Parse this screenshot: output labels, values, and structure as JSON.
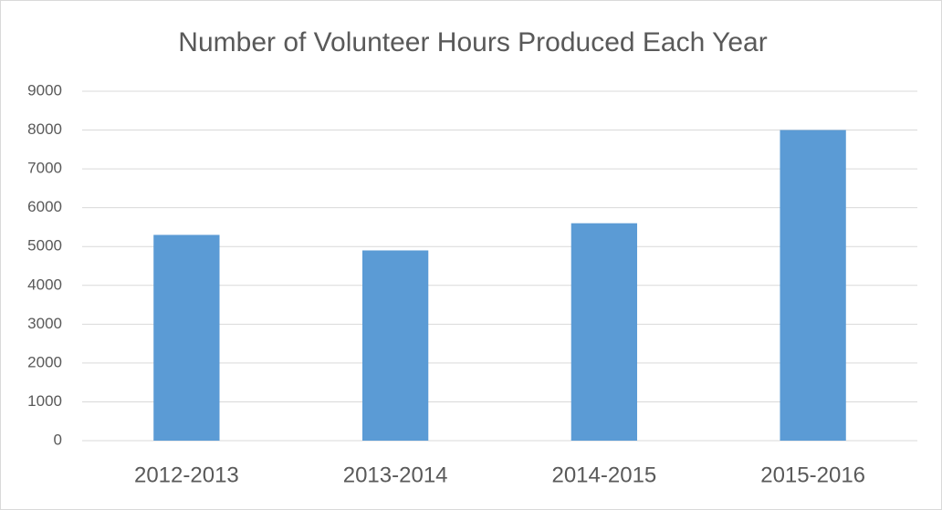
{
  "chart_data": {
    "type": "bar",
    "title": "Number of Volunteer Hours Produced Each Year",
    "categories": [
      "2012-2013",
      "2013-2014",
      "2014-2015",
      "2015-2016"
    ],
    "values": [
      5300,
      4900,
      5600,
      8000
    ],
    "color": "#5b9bd5",
    "ylim": [
      0,
      9000
    ],
    "yticks": [
      0,
      1000,
      2000,
      3000,
      4000,
      5000,
      6000,
      7000,
      8000,
      9000
    ],
    "grid": true
  }
}
